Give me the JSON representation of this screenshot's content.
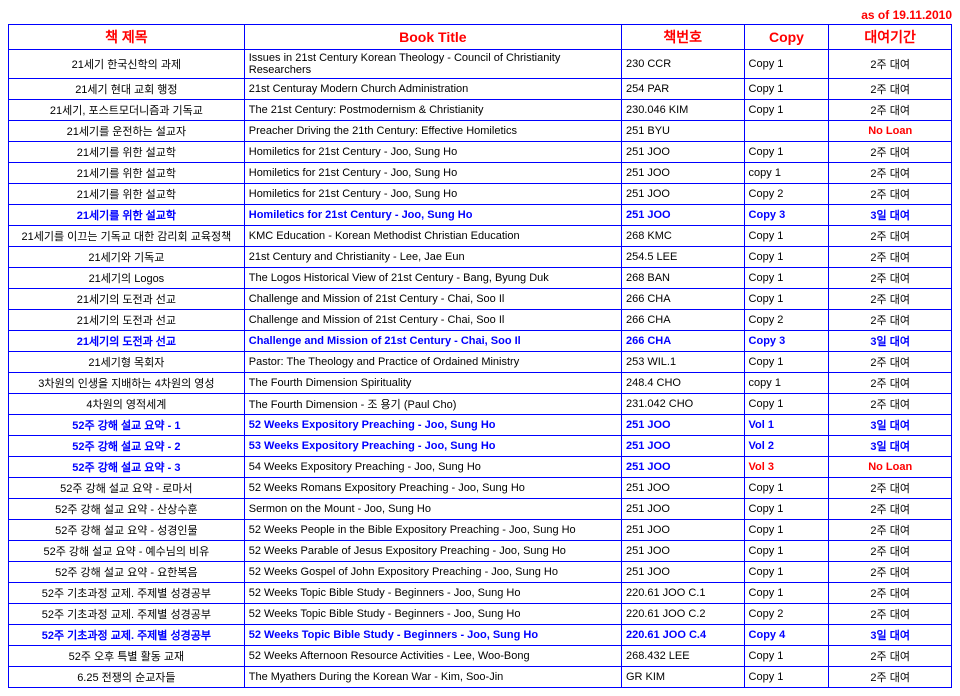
{
  "asof": "as of  19.11.2010",
  "headers": {
    "ko_title": "책 제목",
    "en_title": "Book Title",
    "book_no": "책번호",
    "copy": "Copy",
    "loan": "대여기간"
  },
  "rows": [
    {
      "ko": "21세기 한국신학의 과제",
      "title": "Issues in 21st Century Korean Theology - Council of Christianity Researchers",
      "num": "230 CCR",
      "copy": "Copy 1",
      "loan": "2주 대여",
      "style": "plain"
    },
    {
      "ko": "21세기 현대 교회 행정",
      "title": "21st Centuray Modern Church Administration",
      "num": "254 PAR",
      "copy": "Copy 1",
      "loan": "2주 대여",
      "style": "plain"
    },
    {
      "ko": "21세기, 포스트모더니즘과 기독교",
      "title": "The 21st Century: Postmodernism & Christianity",
      "num": "230.046 KIM",
      "copy": "Copy 1",
      "loan": "2주 대여",
      "style": "plain"
    },
    {
      "ko": "21세기를 운전하는 설교자",
      "title": "Preacher Driving the 21th Century: Effective Homiletics",
      "num": "251 BYU",
      "copy": "",
      "loan": "No Loan",
      "style": "plain",
      "loan_style": "red"
    },
    {
      "ko": "21세기를 위한 설교학",
      "title": "Homiletics for 21st Century - Joo, Sung Ho",
      "num": "251 JOO",
      "copy": "Copy 1",
      "loan": "2주 대여",
      "style": "plain"
    },
    {
      "ko": "21세기를 위한 설교학",
      "title": "Homiletics for 21st Century - Joo, Sung Ho",
      "num": "251 JOO",
      "copy": "copy 1",
      "loan": "2주 대여",
      "style": "plain"
    },
    {
      "ko": "21세기를 위한 설교학",
      "title": "Homiletics for 21st Century - Joo, Sung Ho",
      "num": "251 JOO",
      "copy": "Copy 2",
      "loan": "2주 대여",
      "style": "plain"
    },
    {
      "ko": "21세기를 위한 설교학",
      "title": "Homiletics for 21st Century - Joo, Sung Ho",
      "num": "251 JOO",
      "copy": "Copy 3",
      "loan": "3일 대여",
      "style": "blue"
    },
    {
      "ko": "21세기를 이끄는 기독교 대한 감리회 교육정책",
      "title": "KMC Education - Korean Methodist Christian Education",
      "num": "268 KMC",
      "copy": "Copy 1",
      "loan": "2주 대여",
      "style": "plain"
    },
    {
      "ko": "21세기와 기독교",
      "title": "21st Century and Christianity - Lee, Jae Eun",
      "num": "254.5 LEE",
      "copy": "Copy 1",
      "loan": "2주 대여",
      "style": "plain"
    },
    {
      "ko": "21세기의 Logos",
      "title": "The Logos Historical View of 21st Century - Bang, Byung Duk",
      "num": "268 BAN",
      "copy": "Copy 1",
      "loan": "2주 대여",
      "style": "plain"
    },
    {
      "ko": "21세기의 도전과 선교",
      "title": "Challenge and Mission of 21st Century - Chai, Soo Il",
      "num": "266 CHA",
      "copy": "Copy 1",
      "loan": "2주 대여",
      "style": "plain"
    },
    {
      "ko": "21세기의 도전과 선교",
      "title": "Challenge and Mission of 21st Century - Chai, Soo Il",
      "num": "266 CHA",
      "copy": "Copy 2",
      "loan": "2주 대여",
      "style": "plain"
    },
    {
      "ko": "21세기의 도전과 선교",
      "title": "Challenge and Mission of 21st Century - Chai, Soo Il",
      "num": "266 CHA",
      "copy": "Copy 3",
      "loan": "3일 대여",
      "style": "blue"
    },
    {
      "ko": "21세기형 목회자",
      "title": "Pastor: The Theology and Practice of Ordained Ministry",
      "num": "253 WIL.1",
      "copy": "Copy 1",
      "loan": "2주 대여",
      "style": "plain"
    },
    {
      "ko": "3차원의 인생을 지배하는 4차원의 영성",
      "title": "The Fourth Dimension Spirituality",
      "num": "248.4 CHO",
      "copy": "copy 1",
      "loan": "2주 대여",
      "style": "plain"
    },
    {
      "ko": "4차원의 영적세계",
      "title": "The Fourth Dimension -  조 용기 (Paul Cho)",
      "num": "231.042 CHO",
      "copy": "Copy 1",
      "loan": "2주 대여",
      "style": "plain"
    },
    {
      "ko": "52주 강해 설교 요약 - 1",
      "title": "52 Weeks Expository Preaching - Joo, Sung Ho",
      "num": "251 JOO",
      "copy": "Vol 1",
      "loan": "3일 대여",
      "style": "blue"
    },
    {
      "ko": "52주 강해 설교 요약 - 2",
      "title": "53 Weeks Expository Preaching - Joo, Sung Ho",
      "num": "251 JOO",
      "copy": "Vol 2",
      "loan": "3일 대여",
      "style": "blue"
    },
    {
      "ko": "52주 강해 설교 요약 - 3",
      "title": "54 Weeks Expository Preaching - Joo, Sung Ho",
      "num": "251 JOO",
      "copy": "Vol 3",
      "loan": "No Loan",
      "style": "plain",
      "ko_style": "blue",
      "num_style": "blue",
      "copy_style": "red",
      "loan_style": "red"
    },
    {
      "ko": "52주 강해 설교 요약 - 로마서",
      "title": "52 Weeks Romans Expository Preaching - Joo, Sung Ho",
      "num": "251 JOO",
      "copy": "Copy 1",
      "loan": "2주 대여",
      "style": "plain"
    },
    {
      "ko": "52주 강해 설교 요약 - 산상수훈",
      "title": "Sermon on the Mount - Joo, Sung Ho",
      "num": "251 JOO",
      "copy": "Copy 1",
      "loan": "2주 대여",
      "style": "plain"
    },
    {
      "ko": "52주 강해 설교 요약 - 성경인물",
      "title": "52 Weeks People in the Bible Expository Preaching - Joo, Sung Ho",
      "num": "251 JOO",
      "copy": "Copy 1",
      "loan": "2주 대여",
      "style": "plain"
    },
    {
      "ko": "52주 강해 설교 요약 - 예수님의 비유",
      "title": "52 Weeks Parable of Jesus Expository Preaching - Joo, Sung Ho",
      "num": "251 JOO",
      "copy": "Copy 1",
      "loan": "2주 대여",
      "style": "plain"
    },
    {
      "ko": "52주 강해 설교 요약 - 요한복음",
      "title": "52 Weeks Gospel of John Expository Preaching - Joo, Sung Ho",
      "num": "251 JOO",
      "copy": "Copy 1",
      "loan": "2주 대여",
      "style": "plain"
    },
    {
      "ko": "52주 기초과정 교제. 주제별 성경공부",
      "title": "52 Weeks Topic Bible Study - Beginners - Joo, Sung Ho",
      "num": "220.61 JOO C.1",
      "copy": "Copy 1",
      "loan": "2주 대여",
      "style": "plain"
    },
    {
      "ko": "52주 기초과정 교제. 주제별 성경공부",
      "title": "52 Weeks Topic Bible Study - Beginners - Joo, Sung Ho",
      "num": "220.61 JOO C.2",
      "copy": "Copy 2",
      "loan": "2주 대여",
      "style": "plain"
    },
    {
      "ko": "52주 기초과정 교제. 주제별 성경공부",
      "title": "52 Weeks Topic Bible Study - Beginners - Joo, Sung Ho",
      "num": "220.61 JOO C.4",
      "copy": "Copy 4",
      "loan": "3일 대여",
      "style": "blue"
    },
    {
      "ko": "52주 오후 특별 활동 교재",
      "title": "52 Weeks Afternoon Resource Activities - Lee, Woo-Bong",
      "num": "268.432 LEE",
      "copy": "Copy 1",
      "loan": "2주 대여",
      "style": "plain"
    },
    {
      "ko": "6.25 전쟁의 순교자들",
      "title": "The Myathers During the Korean War - Kim, Soo-Jin",
      "num": "GR KIM",
      "copy": "Copy 1",
      "loan": "2주 대여",
      "style": "plain"
    }
  ]
}
